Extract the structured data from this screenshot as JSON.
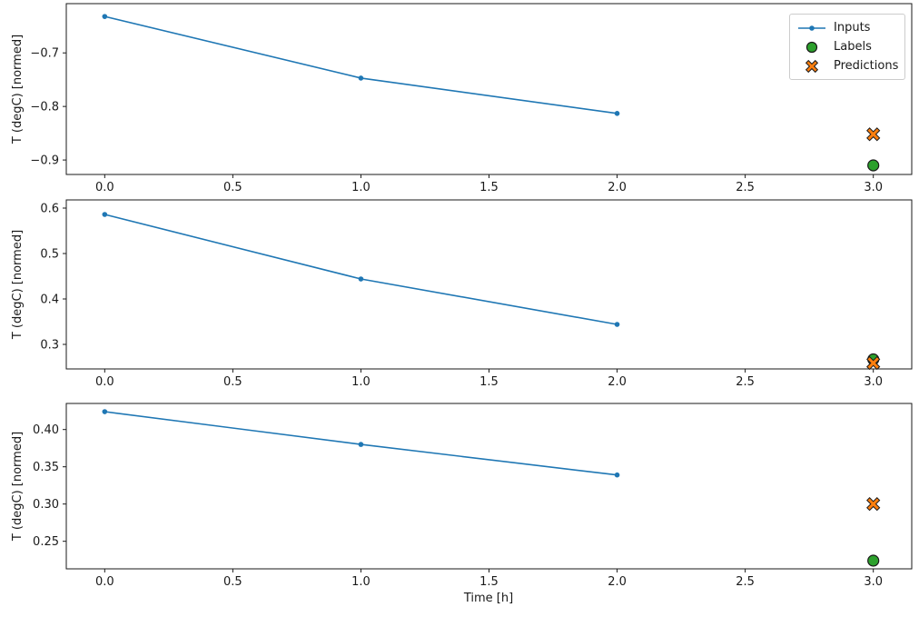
{
  "figure": {
    "background": "#ffffff",
    "frame_color": "#1a1a1a"
  },
  "legend": {
    "position": "upper right of first subplot",
    "items": [
      {
        "label": "Inputs",
        "marker": "line-dot",
        "color": "#1f77b4"
      },
      {
        "label": "Labels",
        "marker": "circle",
        "color": "#2ca02c",
        "edge": "#1a1a1a"
      },
      {
        "label": "Predictions",
        "marker": "x",
        "color": "#ff7f0e",
        "edge": "#1a1a1a"
      }
    ]
  },
  "chart_data": [
    {
      "type": "line",
      "title": "",
      "xlabel": "",
      "ylabel": "T (degC) [normed]",
      "grid": false,
      "xlim": [
        -0.15,
        3.15
      ],
      "ylim": [
        -0.927,
        -0.608
      ],
      "xticks": [
        {
          "v": 0.0,
          "label": "0.0"
        },
        {
          "v": 0.5,
          "label": "0.5"
        },
        {
          "v": 1.0,
          "label": "1.0"
        },
        {
          "v": 1.5,
          "label": "1.5"
        },
        {
          "v": 2.0,
          "label": "2.0"
        },
        {
          "v": 2.5,
          "label": "2.5"
        },
        {
          "v": 3.0,
          "label": "3.0"
        }
      ],
      "yticks": [
        {
          "v": -0.7,
          "label": "−0.7"
        },
        {
          "v": -0.8,
          "label": "−0.8"
        },
        {
          "v": -0.9,
          "label": "−0.9"
        }
      ],
      "series": [
        {
          "name": "Inputs",
          "kind": "line",
          "marker": "dot",
          "color": "#1f77b4",
          "x": [
            0,
            1,
            2
          ],
          "y": [
            -0.632,
            -0.747,
            -0.813
          ]
        },
        {
          "name": "Labels",
          "kind": "scatter",
          "marker": "circle",
          "color": "#2ca02c",
          "edge": "#1a1a1a",
          "x": [
            3
          ],
          "y": [
            -0.91
          ]
        },
        {
          "name": "Predictions",
          "kind": "scatter",
          "marker": "x",
          "color": "#ff7f0e",
          "edge": "#1a1a1a",
          "x": [
            3
          ],
          "y": [
            -0.852
          ]
        }
      ]
    },
    {
      "type": "line",
      "title": "",
      "xlabel": "",
      "ylabel": "T (degC) [normed]",
      "grid": false,
      "xlim": [
        -0.15,
        3.15
      ],
      "ylim": [
        0.246,
        0.618
      ],
      "xticks": [
        {
          "v": 0.0,
          "label": "0.0"
        },
        {
          "v": 0.5,
          "label": "0.5"
        },
        {
          "v": 1.0,
          "label": "1.0"
        },
        {
          "v": 1.5,
          "label": "1.5"
        },
        {
          "v": 2.0,
          "label": "2.0"
        },
        {
          "v": 2.5,
          "label": "2.5"
        },
        {
          "v": 3.0,
          "label": "3.0"
        }
      ],
      "yticks": [
        {
          "v": 0.3,
          "label": "0.3"
        },
        {
          "v": 0.4,
          "label": "0.4"
        },
        {
          "v": 0.5,
          "label": "0.5"
        },
        {
          "v": 0.6,
          "label": "0.6"
        }
      ],
      "series": [
        {
          "name": "Inputs",
          "kind": "line",
          "marker": "dot",
          "color": "#1f77b4",
          "x": [
            0,
            1,
            2
          ],
          "y": [
            0.586,
            0.444,
            0.344
          ]
        },
        {
          "name": "Labels",
          "kind": "scatter",
          "marker": "circle",
          "color": "#2ca02c",
          "edge": "#1a1a1a",
          "x": [
            3
          ],
          "y": [
            0.267
          ]
        },
        {
          "name": "Predictions",
          "kind": "scatter",
          "marker": "x",
          "color": "#ff7f0e",
          "edge": "#1a1a1a",
          "x": [
            3
          ],
          "y": [
            0.259
          ]
        }
      ]
    },
    {
      "type": "line",
      "title": "",
      "xlabel": "Time [h]",
      "ylabel": "T (degC) [normed]",
      "grid": false,
      "xlim": [
        -0.15,
        3.15
      ],
      "ylim": [
        0.213,
        0.435
      ],
      "xticks": [
        {
          "v": 0.0,
          "label": "0.0"
        },
        {
          "v": 0.5,
          "label": "0.5"
        },
        {
          "v": 1.0,
          "label": "1.0"
        },
        {
          "v": 1.5,
          "label": "1.5"
        },
        {
          "v": 2.0,
          "label": "2.0"
        },
        {
          "v": 2.5,
          "label": "2.5"
        },
        {
          "v": 3.0,
          "label": "3.0"
        }
      ],
      "yticks": [
        {
          "v": 0.25,
          "label": "0.25"
        },
        {
          "v": 0.3,
          "label": "0.30"
        },
        {
          "v": 0.35,
          "label": "0.35"
        },
        {
          "v": 0.4,
          "label": "0.40"
        }
      ],
      "series": [
        {
          "name": "Inputs",
          "kind": "line",
          "marker": "dot",
          "color": "#1f77b4",
          "x": [
            0,
            1,
            2
          ],
          "y": [
            0.424,
            0.38,
            0.339
          ]
        },
        {
          "name": "Labels",
          "kind": "scatter",
          "marker": "circle",
          "color": "#2ca02c",
          "edge": "#1a1a1a",
          "x": [
            3
          ],
          "y": [
            0.224
          ]
        },
        {
          "name": "Predictions",
          "kind": "scatter",
          "marker": "x",
          "color": "#ff7f0e",
          "edge": "#1a1a1a",
          "x": [
            3
          ],
          "y": [
            0.3
          ]
        }
      ]
    }
  ]
}
